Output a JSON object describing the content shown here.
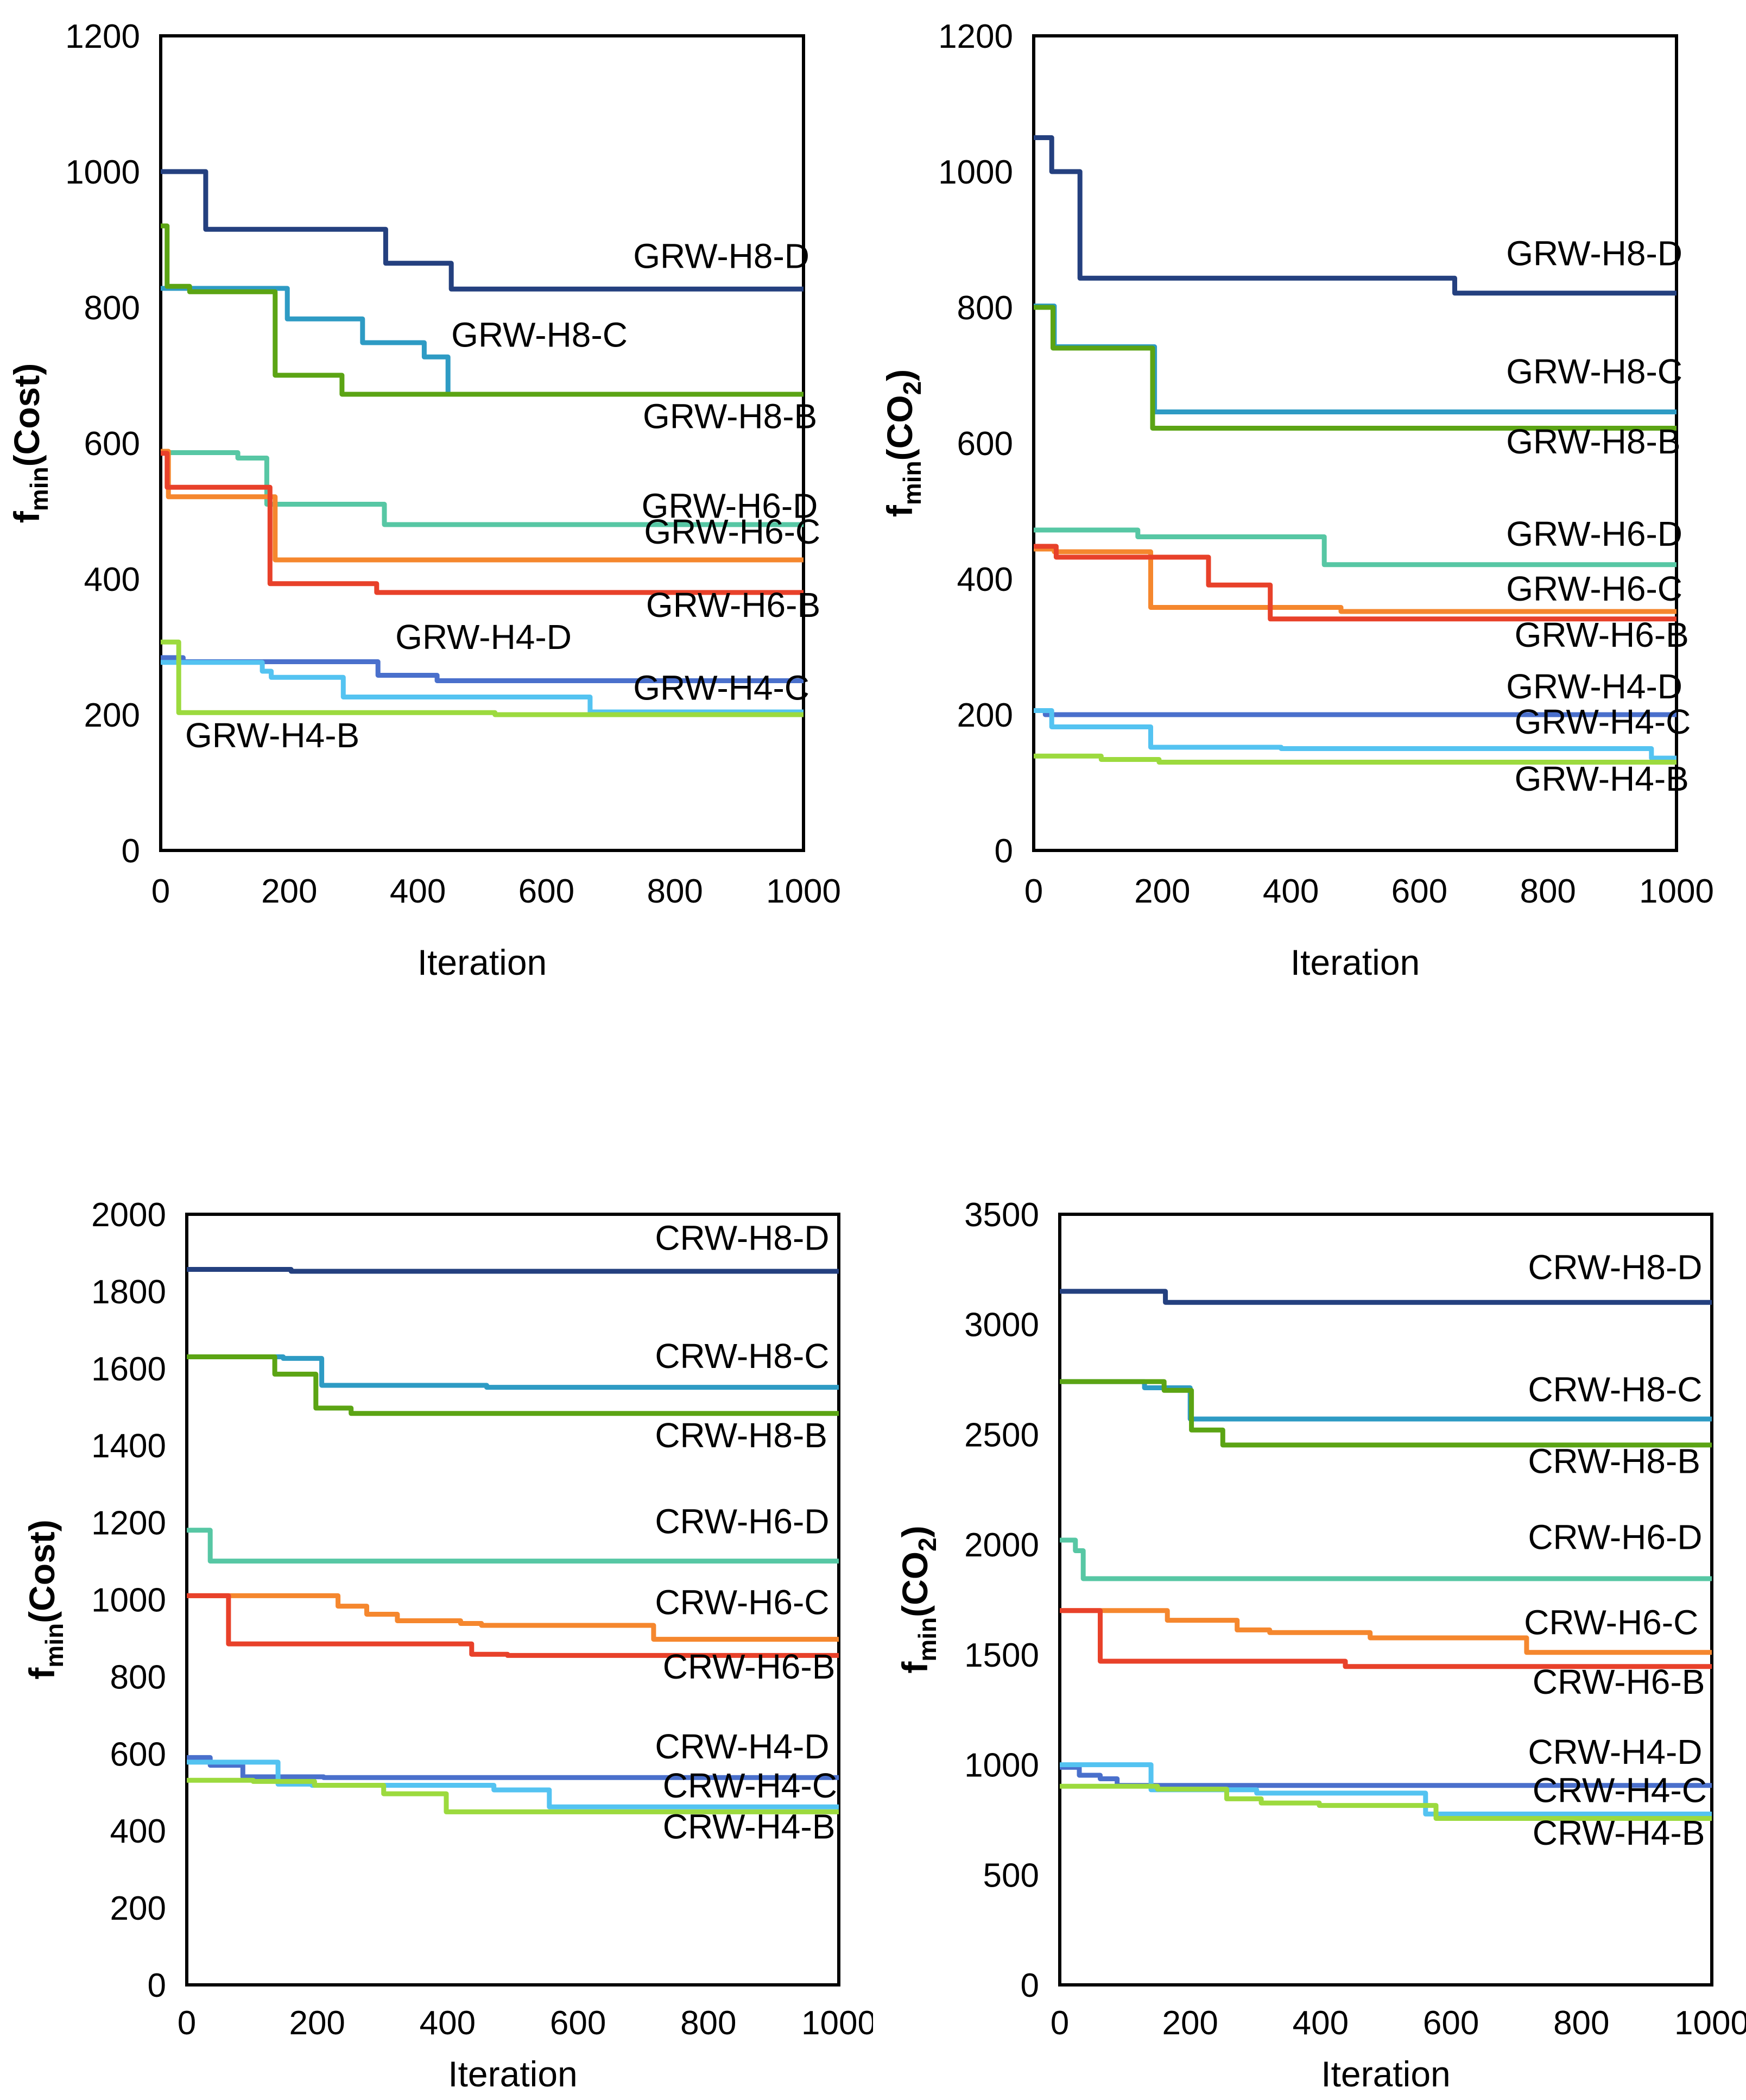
{
  "figure": {
    "background": "#FFFFFF",
    "text_color": "#000000",
    "axis_color": "#000000",
    "xlabel": "Iteration"
  },
  "chart_data": [
    {
      "id": "grw-cost",
      "type": "line",
      "subtype": "step",
      "xlabel": "Iteration",
      "ylabel_tokens": [
        {
          "t": "f"
        },
        {
          "t": "min",
          "sub": true
        },
        {
          "t": "(Cost)"
        }
      ],
      "xlim": [
        0,
        1000
      ],
      "ylim": [
        0,
        1200
      ],
      "xticks": [
        0,
        200,
        400,
        600,
        800,
        1000
      ],
      "yticks": [
        0,
        200,
        400,
        600,
        800,
        1000,
        1200
      ],
      "grid": false,
      "legend": "inline-labels",
      "series": [
        {
          "name": "GRW-H8-D",
          "color": "#24407F",
          "steps": [
            [
              0,
              1000
            ],
            [
              70,
              915
            ],
            [
              350,
              865
            ],
            [
              452,
              827
            ]
          ],
          "label_pos": [
            735,
            858
          ]
        },
        {
          "name": "GRW-H8-C",
          "color": "#2E9BC4",
          "steps": [
            [
              0,
              828
            ],
            [
              197,
              783
            ],
            [
              314,
              748
            ],
            [
              410,
              727
            ],
            [
              447,
              672
            ]
          ],
          "label_pos": [
            452,
            742
          ]
        },
        {
          "name": "GRW-H8-B",
          "color": "#5BA414",
          "steps": [
            [
              0,
              920
            ],
            [
              10,
              831
            ],
            [
              45,
              823
            ],
            [
              178,
              700
            ],
            [
              282,
              672
            ]
          ],
          "label_pos": [
            750,
            622
          ]
        },
        {
          "name": "GRW-H6-D",
          "color": "#57C7A4",
          "steps": [
            [
              0,
              586
            ],
            [
              120,
              578
            ],
            [
              165,
              510
            ],
            [
              348,
              480
            ]
          ],
          "label_pos": [
            748,
            490
          ]
        },
        {
          "name": "GRW-H6-C",
          "color": "#F5872E",
          "steps": [
            [
              0,
              588
            ],
            [
              12,
              521
            ],
            [
              178,
              428
            ]
          ],
          "label_pos": [
            752,
            452
          ]
        },
        {
          "name": "GRW-H6-B",
          "color": "#E8412A",
          "steps": [
            [
              0,
              585
            ],
            [
              10,
              535
            ],
            [
              170,
              393
            ],
            [
              336,
              380
            ]
          ],
          "label_pos": [
            755,
            344
          ]
        },
        {
          "name": "GRW-H4-D",
          "color": "#4A70CC",
          "steps": [
            [
              0,
              284
            ],
            [
              35,
              278
            ],
            [
              338,
              258
            ],
            [
              430,
              250
            ]
          ],
          "label_pos": [
            365,
            297
          ]
        },
        {
          "name": "GRW-H4-C",
          "color": "#54C3F1",
          "steps": [
            [
              0,
              277
            ],
            [
              158,
              264
            ],
            [
              172,
              255
            ],
            [
              284,
              226
            ],
            [
              668,
              204
            ]
          ],
          "label_pos": [
            735,
            222
          ]
        },
        {
          "name": "GRW-H4-B",
          "color": "#9CDA3E",
          "steps": [
            [
              0,
              307
            ],
            [
              28,
              203
            ],
            [
              520,
              200
            ]
          ],
          "label_pos": [
            38,
            152
          ]
        }
      ]
    },
    {
      "id": "grw-co2",
      "type": "line",
      "subtype": "step",
      "xlabel": "Iteration",
      "ylabel_tokens": [
        {
          "t": "f"
        },
        {
          "t": "min",
          "sub": true
        },
        {
          "t": "(CO"
        },
        {
          "t": "2",
          "sub": true
        },
        {
          "t": ")"
        }
      ],
      "xlim": [
        0,
        1000
      ],
      "ylim": [
        0,
        1200
      ],
      "xticks": [
        0,
        200,
        400,
        600,
        800,
        1000
      ],
      "yticks": [
        0,
        200,
        400,
        600,
        800,
        1000,
        1200
      ],
      "grid": false,
      "legend": "inline-labels",
      "series": [
        {
          "name": "GRW-H8-D",
          "color": "#24407F",
          "steps": [
            [
              0,
              1050
            ],
            [
              28,
              1000
            ],
            [
              72,
              843
            ],
            [
              655,
              821
            ]
          ],
          "label_pos": [
            735,
            862
          ]
        },
        {
          "name": "GRW-H8-C",
          "color": "#2E9BC4",
          "steps": [
            [
              0,
              802
            ],
            [
              32,
              742
            ],
            [
              188,
              646
            ]
          ],
          "label_pos": [
            735,
            688
          ]
        },
        {
          "name": "GRW-H8-B",
          "color": "#5BA414",
          "steps": [
            [
              0,
              800
            ],
            [
              30,
              740
            ],
            [
              185,
              622
            ]
          ],
          "label_pos": [
            735,
            585
          ]
        },
        {
          "name": "GRW-H6-D",
          "color": "#57C7A4",
          "steps": [
            [
              0,
              472
            ],
            [
              162,
              462
            ],
            [
              452,
              421
            ]
          ],
          "label_pos": [
            735,
            449
          ]
        },
        {
          "name": "GRW-H6-C",
          "color": "#F5872E",
          "steps": [
            [
              0,
              444
            ],
            [
              32,
              440
            ],
            [
              182,
              358
            ],
            [
              478,
              352
            ]
          ],
          "label_pos": [
            735,
            368
          ]
        },
        {
          "name": "GRW-H6-B",
          "color": "#E8412A",
          "steps": [
            [
              0,
              448
            ],
            [
              35,
              432
            ],
            [
              272,
              391
            ],
            [
              368,
              341
            ]
          ],
          "label_pos": [
            748,
            300
          ]
        },
        {
          "name": "GRW-H4-D",
          "color": "#4A70CC",
          "steps": [
            [
              0,
              206
            ],
            [
              18,
              200
            ]
          ],
          "label_pos": [
            735,
            224
          ]
        },
        {
          "name": "GRW-H4-C",
          "color": "#54C3F1",
          "steps": [
            [
              0,
              206
            ],
            [
              28,
              182
            ],
            [
              182,
              152
            ],
            [
              385,
              150
            ],
            [
              961,
              136
            ]
          ],
          "label_pos": [
            748,
            172
          ]
        },
        {
          "name": "GRW-H4-B",
          "color": "#9CDA3E",
          "steps": [
            [
              0,
              139
            ],
            [
              105,
              134
            ],
            [
              195,
              130
            ]
          ],
          "label_pos": [
            748,
            88
          ]
        }
      ]
    },
    {
      "id": "crw-cost",
      "type": "line",
      "subtype": "step",
      "xlabel": "Iteration",
      "ylabel_tokens": [
        {
          "t": "f"
        },
        {
          "t": "min",
          "sub": true
        },
        {
          "t": "(Cost)"
        }
      ],
      "xlim": [
        0,
        1000
      ],
      "ylim": [
        0,
        2000
      ],
      "xticks": [
        0,
        200,
        400,
        600,
        800,
        1000
      ],
      "yticks": [
        0,
        200,
        400,
        600,
        800,
        1000,
        1200,
        1400,
        1600,
        1800,
        2000
      ],
      "grid": false,
      "legend": "inline-labels",
      "series": [
        {
          "name": "CRW-H8-D",
          "color": "#24407F",
          "steps": [
            [
              0,
              1857
            ],
            [
              160,
              1852
            ]
          ],
          "label_pos": [
            718,
            1908
          ]
        },
        {
          "name": "CRW-H8-C",
          "color": "#2E9BC4",
          "steps": [
            [
              0,
              1630
            ],
            [
              148,
              1626
            ],
            [
              207,
              1556
            ],
            [
              460,
              1551
            ]
          ],
          "label_pos": [
            718,
            1601
          ]
        },
        {
          "name": "CRW-H8-B",
          "color": "#5BA414",
          "steps": [
            [
              0,
              1630
            ],
            [
              135,
              1585
            ],
            [
              198,
              1497
            ],
            [
              252,
              1483
            ]
          ],
          "label_pos": [
            718,
            1395
          ]
        },
        {
          "name": "CRW-H6-D",
          "color": "#57C7A4",
          "steps": [
            [
              0,
              1180
            ],
            [
              36,
              1100
            ]
          ],
          "label_pos": [
            718,
            1172
          ]
        },
        {
          "name": "CRW-H6-C",
          "color": "#F5872E",
          "steps": [
            [
              0,
              1010
            ],
            [
              232,
              983
            ],
            [
              276,
              962
            ],
            [
              323,
              945
            ],
            [
              420,
              938
            ],
            [
              452,
              933
            ],
            [
              716,
              897
            ]
          ],
          "label_pos": [
            718,
            962
          ]
        },
        {
          "name": "CRW-H6-B",
          "color": "#E8412A",
          "steps": [
            [
              0,
              1010
            ],
            [
              64,
              885
            ],
            [
              437,
              858
            ],
            [
              492,
              855
            ]
          ],
          "label_pos": [
            730,
            795
          ]
        },
        {
          "name": "CRW-H4-D",
          "color": "#4A70CC",
          "steps": [
            [
              0,
              590
            ],
            [
              36,
              570
            ],
            [
              86,
              540
            ],
            [
              210,
              538
            ]
          ],
          "label_pos": [
            718,
            588
          ]
        },
        {
          "name": "CRW-H4-C",
          "color": "#54C3F1",
          "steps": [
            [
              0,
              578
            ],
            [
              140,
              521
            ],
            [
              192,
              518
            ],
            [
              471,
              506
            ],
            [
              556,
              462
            ]
          ],
          "label_pos": [
            730,
            486
          ]
        },
        {
          "name": "CRW-H4-B",
          "color": "#9CDA3E",
          "steps": [
            [
              0,
              531
            ],
            [
              102,
              528
            ],
            [
              196,
              518
            ],
            [
              302,
              496
            ],
            [
              398,
              449
            ]
          ],
          "label_pos": [
            730,
            380
          ]
        }
      ]
    },
    {
      "id": "crw-co2",
      "type": "line",
      "subtype": "step",
      "xlabel": "Iteration",
      "ylabel_tokens": [
        {
          "t": "f"
        },
        {
          "t": "min",
          "sub": true
        },
        {
          "t": "(CO"
        },
        {
          "t": "2",
          "sub": true
        },
        {
          "t": ")"
        }
      ],
      "xlim": [
        0,
        1000
      ],
      "ylim": [
        0,
        3500
      ],
      "xticks": [
        0,
        200,
        400,
        600,
        800,
        1000
      ],
      "yticks": [
        0,
        500,
        1000,
        1500,
        2000,
        2500,
        3000,
        3500
      ],
      "grid": false,
      "legend": "inline-labels",
      "series": [
        {
          "name": "CRW-H8-D",
          "color": "#24407F",
          "steps": [
            [
              0,
              3150
            ],
            [
              162,
              3100
            ]
          ],
          "label_pos": [
            718,
            3205
          ]
        },
        {
          "name": "CRW-H8-C",
          "color": "#2E9BC4",
          "steps": [
            [
              0,
              2740
            ],
            [
              130,
              2712
            ],
            [
              200,
              2570
            ]
          ],
          "label_pos": [
            718,
            2650
          ]
        },
        {
          "name": "CRW-H8-B",
          "color": "#5BA414",
          "steps": [
            [
              0,
              2740
            ],
            [
              160,
              2700
            ],
            [
              202,
              2520
            ],
            [
              250,
              2452
            ]
          ],
          "label_pos": [
            718,
            2325
          ]
        },
        {
          "name": "CRW-H6-D",
          "color": "#57C7A4",
          "steps": [
            [
              0,
              2020
            ],
            [
              24,
              1972
            ],
            [
              36,
              1845
            ]
          ],
          "label_pos": [
            718,
            1980
          ]
        },
        {
          "name": "CRW-H6-C",
          "color": "#F5872E",
          "steps": [
            [
              0,
              1700
            ],
            [
              165,
              1656
            ],
            [
              272,
              1612
            ],
            [
              322,
              1600
            ],
            [
              476,
              1576
            ],
            [
              716,
              1510
            ]
          ],
          "label_pos": [
            712,
            1592
          ]
        },
        {
          "name": "CRW-H6-B",
          "color": "#E8412A",
          "steps": [
            [
              0,
              1700
            ],
            [
              62,
              1470
            ],
            [
              438,
              1446
            ]
          ],
          "label_pos": [
            725,
            1322
          ]
        },
        {
          "name": "CRW-H4-D",
          "color": "#4A70CC",
          "steps": [
            [
              0,
              988
            ],
            [
              30,
              952
            ],
            [
              62,
              936
            ],
            [
              88,
              906
            ]
          ],
          "label_pos": [
            718,
            1004
          ]
        },
        {
          "name": "CRW-H4-C",
          "color": "#54C3F1",
          "steps": [
            [
              0,
              1000
            ],
            [
              140,
              886
            ],
            [
              302,
              871
            ],
            [
              561,
              776
            ]
          ],
          "label_pos": [
            725,
            830
          ]
        },
        {
          "name": "CRW-H4-B",
          "color": "#9CDA3E",
          "steps": [
            [
              0,
              902
            ],
            [
              150,
              889
            ],
            [
              256,
              845
            ],
            [
              309,
              826
            ],
            [
              398,
              815
            ],
            [
              577,
              756
            ]
          ],
          "label_pos": [
            725,
            636
          ]
        }
      ]
    }
  ]
}
